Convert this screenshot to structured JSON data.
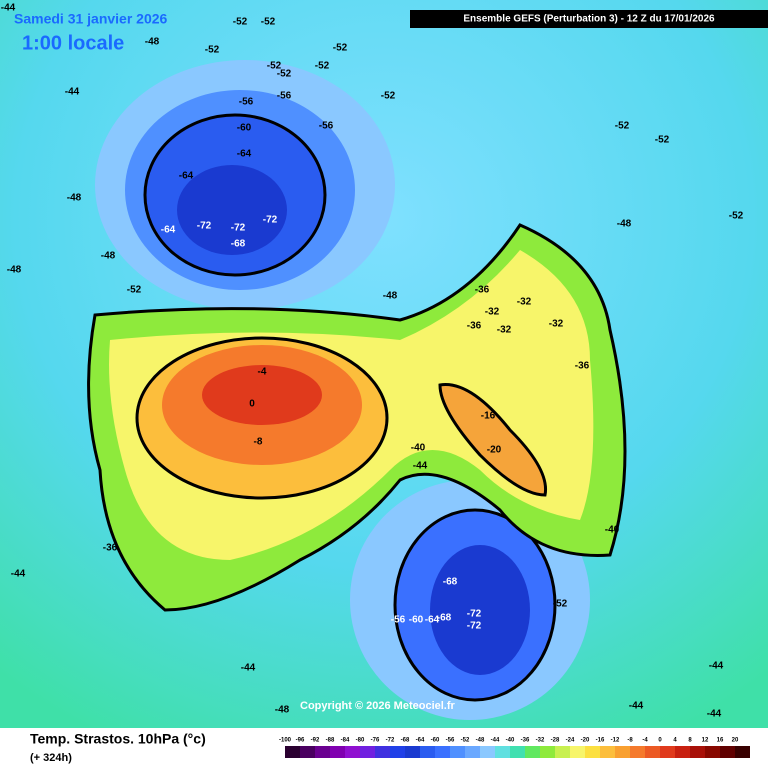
{
  "header": {
    "title": "Ensemble GEFS  (Perturbation 3)  -  12 Z du 17/01/2026",
    "date": "Samedi 31 janvier 2026",
    "time": "1:00 locale"
  },
  "footer": {
    "parameter": "Temp. Strastos. 10hPa (°c)",
    "lead": "(+ 324h)",
    "copyright": "Copyright © 2026 Meteociel.fr"
  },
  "colorbar": {
    "labels": [
      "-100",
      "-96",
      "-92",
      "-88",
      "-84",
      "-80",
      "-76",
      "-72",
      "-68",
      "-64",
      "-60",
      "-56",
      "-52",
      "-48",
      "-44",
      "-40",
      "-36",
      "-32",
      "-28",
      "-24",
      "-20",
      "-16",
      "-12",
      "-8",
      "-4",
      "0",
      "4",
      "8",
      "12",
      "16",
      "20"
    ]
  },
  "map": {
    "contour_labels": [
      "-44",
      "-52",
      "-52",
      "-48",
      "-52",
      "-52",
      "-52",
      "-52",
      "-52",
      "-44",
      "-56",
      "-56",
      "-52",
      "-56",
      "-60",
      "-64",
      "-64",
      "-48",
      "-72",
      "-72",
      "-72",
      "-68",
      "-64",
      "-48",
      "-48",
      "-52",
      "-48",
      "-36",
      "-32",
      "-32",
      "-36",
      "-32",
      "-32",
      "-36",
      "-4",
      "0",
      "-8",
      "-16",
      "-20",
      "-40",
      "-44",
      "-36",
      "-44",
      "-40",
      "-68",
      "-72",
      "-72",
      "-56",
      "-60",
      "-64",
      "-68",
      "-52",
      "-44",
      "-44",
      "-48",
      "-44",
      "-44",
      "-48",
      "-52",
      "-52",
      "-52"
    ]
  }
}
